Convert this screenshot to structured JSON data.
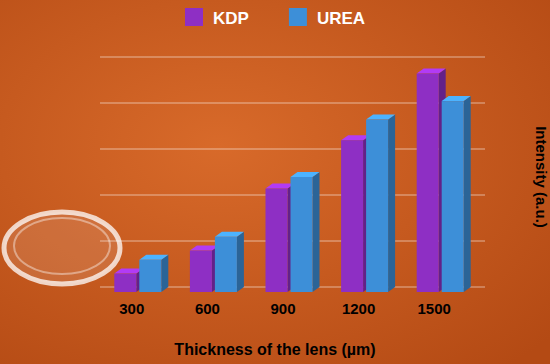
{
  "chart_data": {
    "type": "bar",
    "x_label": "Thickness of the lens (µm)",
    "y_label": "Intensity (a.u.)",
    "categories": [
      "300",
      "600",
      "900",
      "1200",
      "1500"
    ],
    "series": [
      {
        "name": "KDP",
        "color": "#8e2fc4",
        "values": [
          8,
          18,
          45,
          66,
          95
        ]
      },
      {
        "name": "UREA",
        "color": "#3d8fd8",
        "values": [
          14,
          24,
          50,
          75,
          83
        ]
      }
    ],
    "ylim": [
      0,
      100
    ],
    "yticks": [
      0,
      20,
      40,
      60,
      80,
      100
    ],
    "grid": true,
    "tick_labels": false,
    "legend": "top"
  }
}
